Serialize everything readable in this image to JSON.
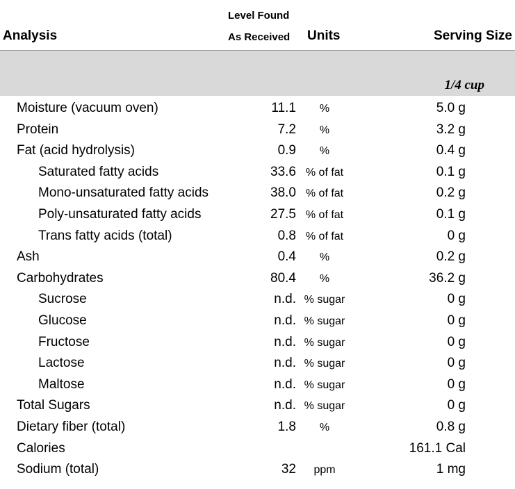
{
  "header": {
    "analysis": "Analysis",
    "level_line1": "Level Found",
    "level_line2": "As Received",
    "units": "Units",
    "serving_size": "Serving Size"
  },
  "band": {
    "serving_amount": "1/4 cup"
  },
  "rows": [
    {
      "name": "Moisture (vacuum oven)",
      "level": "11.1",
      "unit": "%",
      "serving": "5.0 g",
      "indent": false
    },
    {
      "name": "Protein",
      "level": "7.2",
      "unit": "%",
      "serving": "3.2 g",
      "indent": false
    },
    {
      "name": "Fat (acid hydrolysis)",
      "level": "0.9",
      "unit": "%",
      "serving": "0.4 g",
      "indent": false
    },
    {
      "name": "Saturated fatty acids",
      "level": "33.6",
      "unit": "% of fat",
      "serving": "0.1 g",
      "indent": true
    },
    {
      "name": "Mono-unsaturated fatty acids",
      "level": "38.0",
      "unit": "% of fat",
      "serving": "0.2 g",
      "indent": true
    },
    {
      "name": "Poly-unsaturated fatty acids",
      "level": "27.5",
      "unit": "% of fat",
      "serving": "0.1 g",
      "indent": true
    },
    {
      "name": "Trans fatty acids (total)",
      "level": "0.8",
      "unit": "% of fat",
      "serving": "0 g",
      "indent": true
    },
    {
      "name": "Ash",
      "level": "0.4",
      "unit": "%",
      "serving": "0.2 g",
      "indent": false
    },
    {
      "name": "Carbohydrates",
      "level": "80.4",
      "unit": "%",
      "serving": "36.2 g",
      "indent": false
    },
    {
      "name": "Sucrose",
      "level": "n.d.",
      "unit": "% sugar",
      "serving": "0 g",
      "indent": true
    },
    {
      "name": "Glucose",
      "level": "n.d.",
      "unit": "% sugar",
      "serving": "0 g",
      "indent": true
    },
    {
      "name": "Fructose",
      "level": "n.d.",
      "unit": "% sugar",
      "serving": "0 g",
      "indent": true
    },
    {
      "name": "Lactose",
      "level": "n.d.",
      "unit": "% sugar",
      "serving": "0 g",
      "indent": true
    },
    {
      "name": "Maltose",
      "level": "n.d.",
      "unit": "% sugar",
      "serving": "0 g",
      "indent": true
    },
    {
      "name": "Total Sugars",
      "level": "n.d.",
      "unit": "% sugar",
      "serving": "0 g",
      "indent": false
    },
    {
      "name": "Dietary fiber (total)",
      "level": "1.8",
      "unit": "%",
      "serving": "0.8 g",
      "indent": false
    },
    {
      "name": "Calories",
      "level": "",
      "unit": "",
      "serving": "161.1 Cal",
      "indent": false
    },
    {
      "name": "Sodium (total)",
      "level": "32",
      "unit": "ppm",
      "serving": "1 mg",
      "indent": false
    }
  ]
}
